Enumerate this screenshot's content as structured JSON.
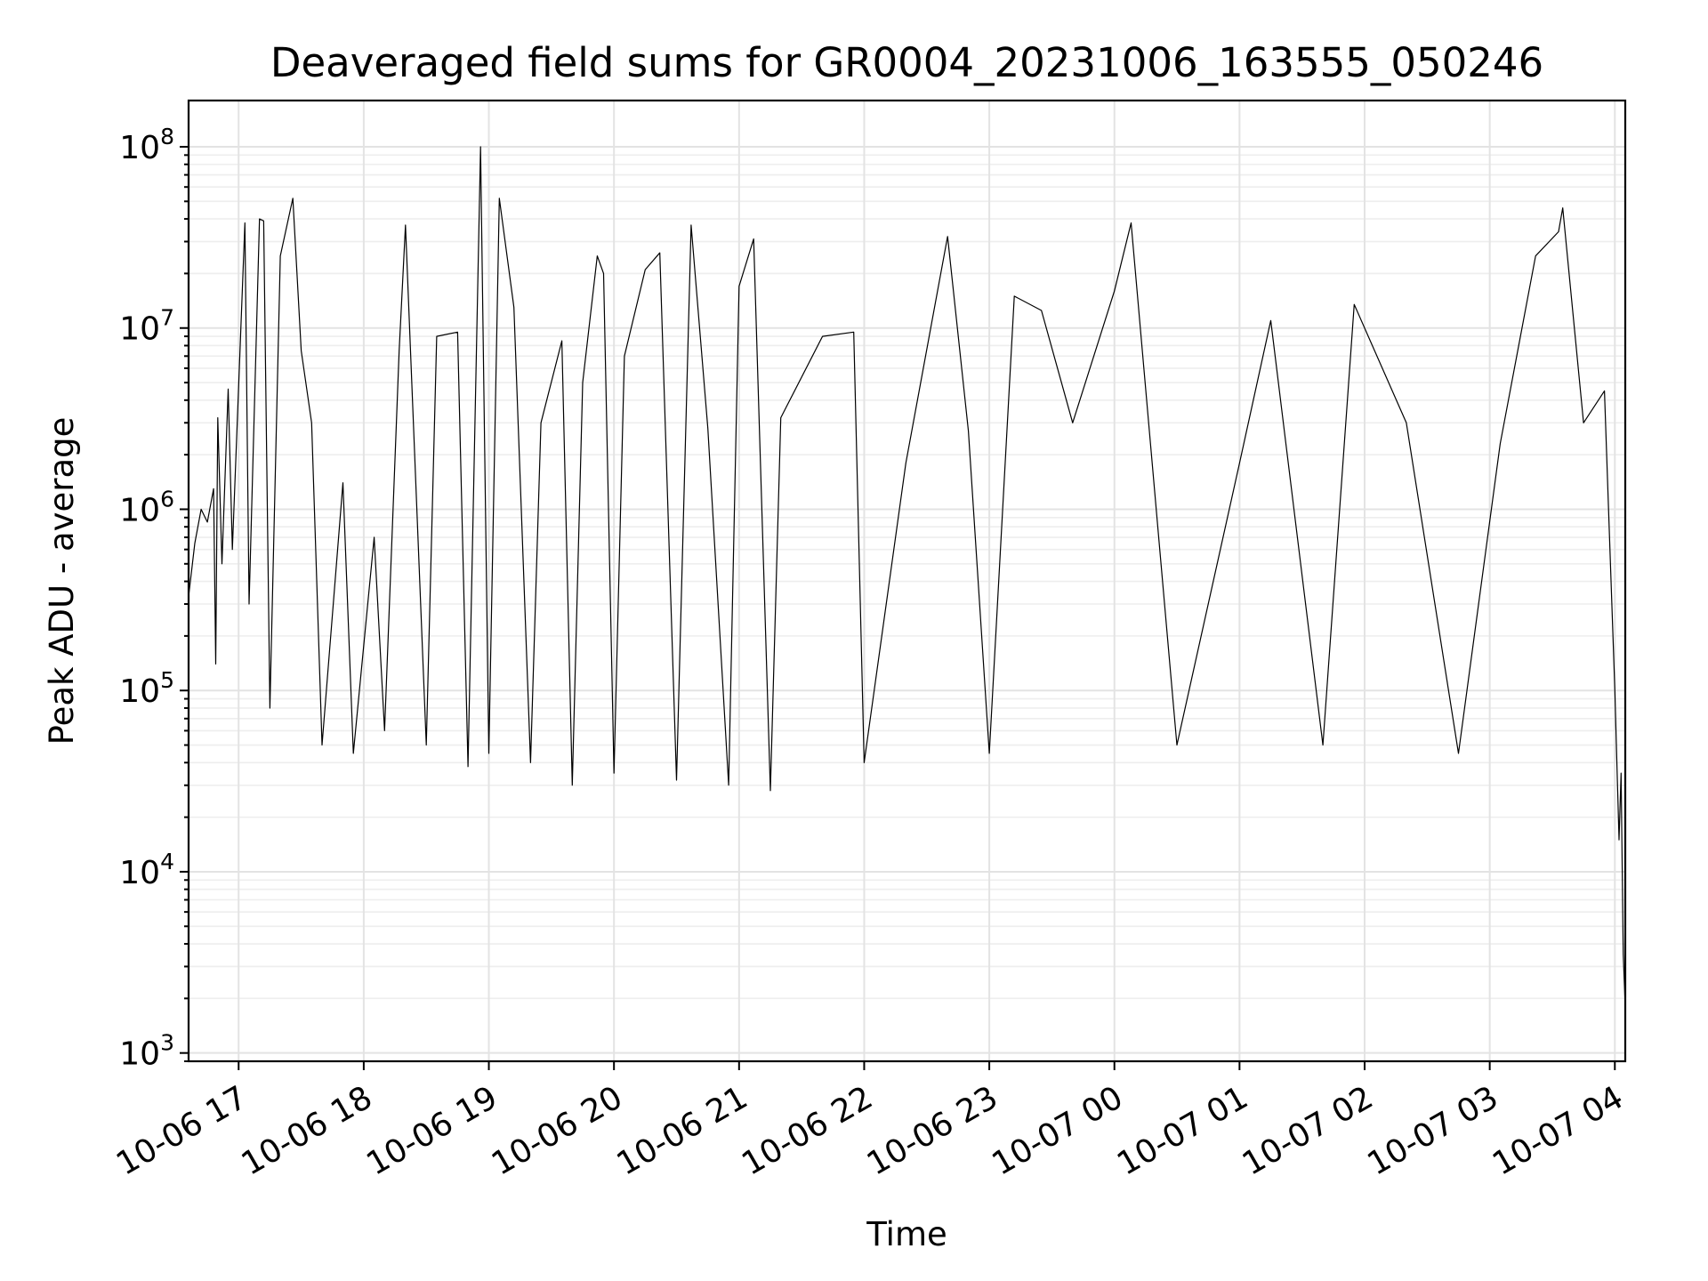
{
  "chart_data": {
    "type": "line",
    "title": "Deaveraged field sums for GR0004_20231006_163555_050246",
    "xlabel": "Time",
    "ylabel": "Peak ADU - average",
    "yscale": "log",
    "ylim": [
      900,
      180000000
    ],
    "xlim": [
      "2023-10-06 16:36",
      "2023-10-07 04:05"
    ],
    "grid": true,
    "legend": false,
    "line_color": "#000000",
    "grid_color": "#e3e3e3",
    "x_ticks": [
      {
        "value": "2023-10-06 17:00",
        "label": "10-06 17"
      },
      {
        "value": "2023-10-06 18:00",
        "label": "10-06 18"
      },
      {
        "value": "2023-10-06 19:00",
        "label": "10-06 19"
      },
      {
        "value": "2023-10-06 20:00",
        "label": "10-06 20"
      },
      {
        "value": "2023-10-06 21:00",
        "label": "10-06 21"
      },
      {
        "value": "2023-10-06 22:00",
        "label": "10-06 22"
      },
      {
        "value": "2023-10-06 23:00",
        "label": "10-06 23"
      },
      {
        "value": "2023-10-07 00:00",
        "label": "10-07 00"
      },
      {
        "value": "2023-10-07 01:00",
        "label": "10-07 01"
      },
      {
        "value": "2023-10-07 02:00",
        "label": "10-07 02"
      },
      {
        "value": "2023-10-07 03:00",
        "label": "10-07 03"
      },
      {
        "value": "2023-10-07 04:00",
        "label": "10-07 04"
      }
    ],
    "y_ticks": [
      {
        "value": 1000,
        "base": "10",
        "exp": "3"
      },
      {
        "value": 10000,
        "base": "10",
        "exp": "4"
      },
      {
        "value": 100000,
        "base": "10",
        "exp": "5"
      },
      {
        "value": 1000000,
        "base": "10",
        "exp": "6"
      },
      {
        "value": 10000000,
        "base": "10",
        "exp": "7"
      },
      {
        "value": 100000000,
        "base": "10",
        "exp": "8"
      }
    ],
    "series": [
      {
        "values": [
          [
            "2023-10-06 16:36",
            330000
          ],
          [
            "2023-10-06 16:39",
            650000
          ],
          [
            "2023-10-06 16:42",
            1000000
          ],
          [
            "2023-10-06 16:45",
            850000
          ],
          [
            "2023-10-06 16:48",
            1300000
          ],
          [
            "2023-10-06 16:49",
            140000
          ],
          [
            "2023-10-06 16:50",
            3200000
          ],
          [
            "2023-10-06 16:52",
            500000
          ],
          [
            "2023-10-06 16:55",
            4600000
          ],
          [
            "2023-10-06 16:57",
            600000
          ],
          [
            "2023-10-06 17:03",
            38000000
          ],
          [
            "2023-10-06 17:05",
            300000
          ],
          [
            "2023-10-06 17:10",
            40000000
          ],
          [
            "2023-10-06 17:12",
            39000000
          ],
          [
            "2023-10-06 17:15",
            80000
          ],
          [
            "2023-10-06 17:20",
            25000000
          ],
          [
            "2023-10-06 17:26",
            52000000
          ],
          [
            "2023-10-06 17:30",
            7500000
          ],
          [
            "2023-10-06 17:35",
            3000000
          ],
          [
            "2023-10-06 17:40",
            50000
          ],
          [
            "2023-10-06 17:50",
            1400000
          ],
          [
            "2023-10-06 17:55",
            45000
          ],
          [
            "2023-10-06 18:05",
            700000
          ],
          [
            "2023-10-06 18:10",
            60000
          ],
          [
            "2023-10-06 18:17",
            7500000
          ],
          [
            "2023-10-06 18:20",
            37000000
          ],
          [
            "2023-10-06 18:30",
            50000
          ],
          [
            "2023-10-06 18:35",
            9000000
          ],
          [
            "2023-10-06 18:45",
            9500000
          ],
          [
            "2023-10-06 18:50",
            38000
          ],
          [
            "2023-10-06 18:56",
            100000000
          ],
          [
            "2023-10-06 19:00",
            45000
          ],
          [
            "2023-10-06 19:05",
            52000000
          ],
          [
            "2023-10-06 19:12",
            13000000
          ],
          [
            "2023-10-06 19:20",
            40000
          ],
          [
            "2023-10-06 19:25",
            3000000
          ],
          [
            "2023-10-06 19:35",
            8500000
          ],
          [
            "2023-10-06 19:40",
            30000
          ],
          [
            "2023-10-06 19:45",
            5000000
          ],
          [
            "2023-10-06 19:52",
            25000000
          ],
          [
            "2023-10-06 19:55",
            20000000
          ],
          [
            "2023-10-06 20:00",
            35000
          ],
          [
            "2023-10-06 20:05",
            7000000
          ],
          [
            "2023-10-06 20:15",
            21000000
          ],
          [
            "2023-10-06 20:22",
            26000000
          ],
          [
            "2023-10-06 20:30",
            32000
          ],
          [
            "2023-10-06 20:37",
            37000000
          ],
          [
            "2023-10-06 20:45",
            2800000
          ],
          [
            "2023-10-06 20:55",
            30000
          ],
          [
            "2023-10-06 21:00",
            17000000
          ],
          [
            "2023-10-06 21:07",
            31000000
          ],
          [
            "2023-10-06 21:15",
            28000
          ],
          [
            "2023-10-06 21:20",
            3200000
          ],
          [
            "2023-10-06 21:40",
            9000000
          ],
          [
            "2023-10-06 21:55",
            9500000
          ],
          [
            "2023-10-06 22:00",
            40000
          ],
          [
            "2023-10-06 22:20",
            1800000
          ],
          [
            "2023-10-06 22:40",
            32000000
          ],
          [
            "2023-10-06 22:50",
            2700000
          ],
          [
            "2023-10-06 23:00",
            45000
          ],
          [
            "2023-10-06 23:12",
            15000000
          ],
          [
            "2023-10-06 23:25",
            12500000
          ],
          [
            "2023-10-06 23:40",
            3000000
          ],
          [
            "2023-10-07 00:00",
            16000000
          ],
          [
            "2023-10-07 00:08",
            38000000
          ],
          [
            "2023-10-07 00:30",
            50000
          ],
          [
            "2023-10-07 01:00",
            1800000
          ],
          [
            "2023-10-07 01:15",
            11000000
          ],
          [
            "2023-10-07 01:40",
            50000
          ],
          [
            "2023-10-07 01:55",
            13500000
          ],
          [
            "2023-10-07 02:20",
            3000000
          ],
          [
            "2023-10-07 02:45",
            45000
          ],
          [
            "2023-10-07 03:05",
            2300000
          ],
          [
            "2023-10-07 03:22",
            25000000
          ],
          [
            "2023-10-07 03:33",
            34000000
          ],
          [
            "2023-10-07 03:35",
            46000000
          ],
          [
            "2023-10-07 03:45",
            3000000
          ],
          [
            "2023-10-07 03:55",
            4500000
          ],
          [
            "2023-10-07 03:57",
            1000000
          ],
          [
            "2023-10-07 04:00",
            100000
          ],
          [
            "2023-10-07 04:02",
            15000
          ],
          [
            "2023-10-07 04:03",
            35000
          ],
          [
            "2023-10-07 04:04",
            3500
          ],
          [
            "2023-10-07 04:05",
            1800
          ]
        ]
      }
    ]
  }
}
